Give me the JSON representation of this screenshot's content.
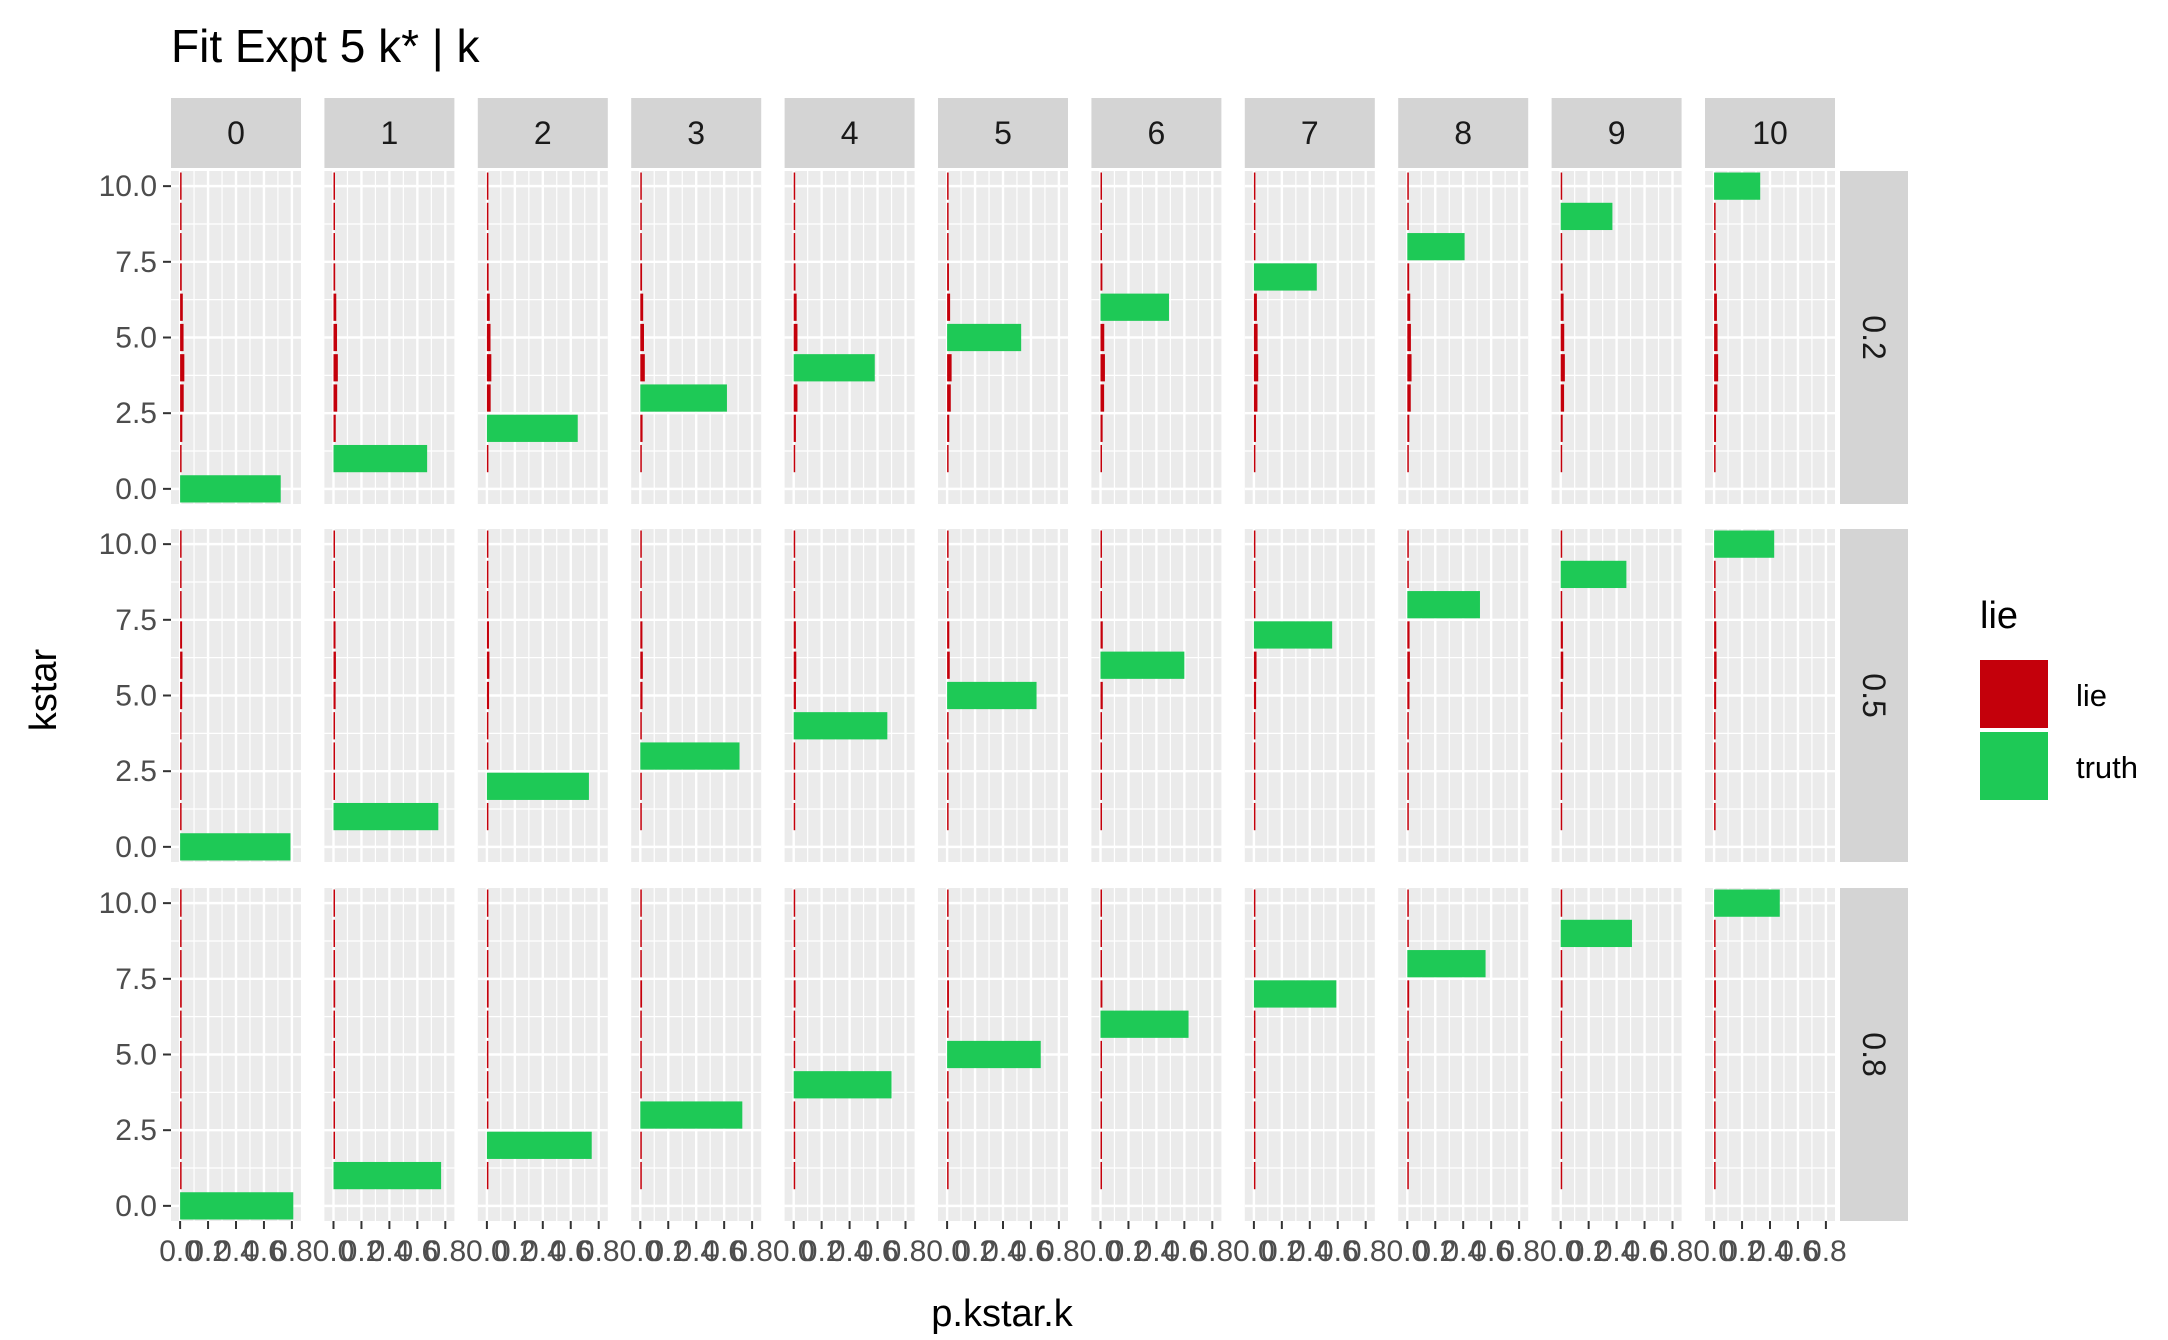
{
  "chart_data": {
    "type": "bar",
    "orientation": "horizontal",
    "title": "Fit Expt 5 k* | k",
    "xlabel": "p.kstar.k",
    "ylabel": "kstar",
    "facet_cols": [
      "0",
      "1",
      "2",
      "3",
      "4",
      "5",
      "6",
      "7",
      "8",
      "9",
      "10"
    ],
    "facet_rows": [
      "0.2",
      "0.5",
      "0.8"
    ],
    "xlim": [
      0,
      0.8
    ],
    "x_ticks": [
      "0.0",
      "0.2",
      "0.4",
      "0.6",
      "0.8"
    ],
    "ylim": [
      -0.5,
      10.5
    ],
    "y_ticks": [
      "0.0",
      "2.5",
      "5.0",
      "7.5",
      "10.0"
    ],
    "legend": {
      "title": "lie",
      "position": "right",
      "entries": [
        {
          "label": "lie",
          "color": "#c4000b"
        },
        {
          "label": "truth",
          "color": "#1ec956"
        }
      ]
    },
    "colors": {
      "lie": "#c4000b",
      "truth": "#1ec956",
      "panel_bg": "#ebebeb",
      "strip_bg": "#d4d4d4",
      "grid": "#ffffff"
    },
    "lie_profiles": {
      "0.2": [
        0.0,
        0.01,
        0.03,
        0.05,
        0.06,
        0.05,
        0.04,
        0.025,
        0.012,
        0.005,
        0.002
      ],
      "0.5": [
        0.0,
        0.002,
        0.005,
        0.01,
        0.02,
        0.03,
        0.035,
        0.03,
        0.02,
        0.01,
        0.004
      ],
      "0.8": [
        0.0,
        0.001,
        0.002,
        0.004,
        0.008,
        0.012,
        0.02,
        0.025,
        0.02,
        0.012,
        0.006
      ]
    },
    "series": [
      {
        "name": "truth",
        "facet_row": "0.2",
        "kstar": [
          0,
          1,
          2,
          3,
          4,
          5,
          6,
          7,
          8,
          9,
          10
        ],
        "values": [
          0.72,
          0.67,
          0.65,
          0.62,
          0.58,
          0.53,
          0.49,
          0.45,
          0.41,
          0.37,
          0.33
        ]
      },
      {
        "name": "truth",
        "facet_row": "0.5",
        "kstar": [
          0,
          1,
          2,
          3,
          4,
          5,
          6,
          7,
          8,
          9,
          10
        ],
        "values": [
          0.79,
          0.75,
          0.73,
          0.71,
          0.67,
          0.64,
          0.6,
          0.56,
          0.52,
          0.47,
          0.43
        ]
      },
      {
        "name": "truth",
        "facet_row": "0.8",
        "kstar": [
          0,
          1,
          2,
          3,
          4,
          5,
          6,
          7,
          8,
          9,
          10
        ],
        "values": [
          0.81,
          0.77,
          0.75,
          0.73,
          0.7,
          0.67,
          0.63,
          0.59,
          0.56,
          0.51,
          0.47
        ]
      }
    ]
  }
}
